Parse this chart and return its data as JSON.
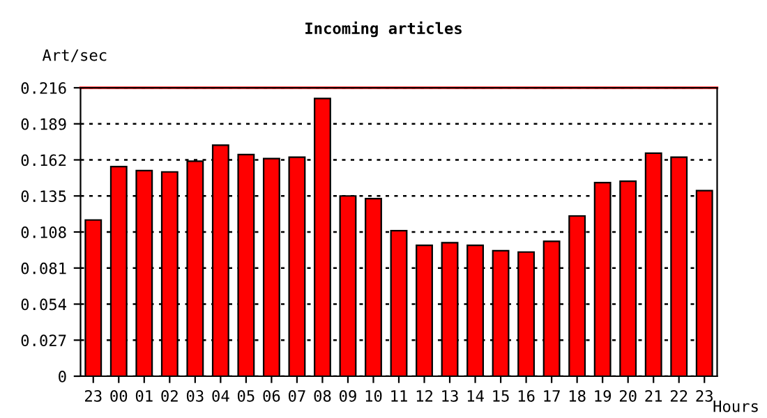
{
  "chart_data": {
    "type": "bar",
    "title": "Incoming articles",
    "ylabel": "Art/sec",
    "xlabel": "Hours",
    "categories": [
      "23",
      "00",
      "01",
      "02",
      "03",
      "04",
      "05",
      "06",
      "07",
      "08",
      "09",
      "10",
      "11",
      "12",
      "13",
      "14",
      "15",
      "16",
      "17",
      "18",
      "19",
      "20",
      "21",
      "22",
      "23"
    ],
    "series": [
      {
        "color": "#ff0000",
        "values": [
          0.117,
          0.157,
          0.154,
          0.153,
          0.161,
          0.173,
          0.166,
          0.163,
          0.164,
          0.208,
          0.135,
          0.133,
          0.109,
          0.098,
          0.1,
          0.098,
          0.094,
          0.093,
          0.101,
          0.12,
          0.145,
          0.146,
          0.167,
          0.164,
          0.139
        ]
      }
    ],
    "ylim": [
      0,
      0.216
    ],
    "yticks": [
      0,
      0.027,
      0.054,
      0.081,
      0.108,
      0.135,
      0.162,
      0.189,
      0.216
    ],
    "grid": "y",
    "ref_lines": [
      {
        "axis": "y",
        "value": 0.216,
        "color": "#ff0000"
      }
    ]
  }
}
